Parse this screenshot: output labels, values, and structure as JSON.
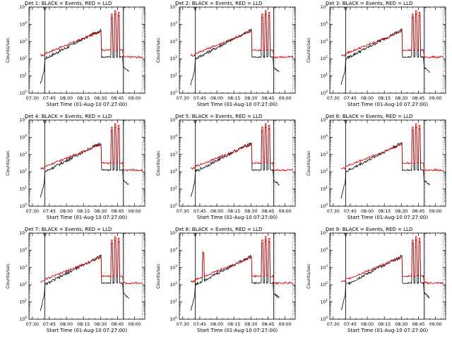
{
  "ylabel": "Counts/sec",
  "xlabel": "Start Time (01-Aug-10 07:27:00)",
  "colors": {
    "events": "#000000",
    "lld": "#d00000",
    "axis": "#000000"
  },
  "chart_data": [
    {
      "type": "line",
      "title": "Det 1: BLACK = Events, RED = LLD",
      "xtick_labels": [
        "07:30",
        "07:45",
        "08:00",
        "08:15",
        "08:30",
        "08:45",
        "09:00"
      ],
      "ytick_exponents": [
        0,
        1,
        2,
        3,
        4,
        5
      ],
      "yscale": "log",
      "ylim": [
        1,
        100000
      ],
      "y_decades_base": 10,
      "xlabel": "Start Time (01-Aug-10 07:27:00)",
      "ylabel": "Counts/sec",
      "series": [
        {
          "name": "Events",
          "color": "#000000"
        },
        {
          "name": "LLD",
          "color": "#d00000"
        }
      ]
    },
    {
      "type": "line",
      "title": "Det 2: BLACK = Events, RED = LLD",
      "xtick_labels": [
        "07:30",
        "07:45",
        "08:00",
        "08:15",
        "08:30",
        "08:45",
        "09:00"
      ],
      "ytick_exponents": [
        0,
        1,
        2,
        3,
        4,
        5
      ],
      "yscale": "log",
      "ylim": [
        1,
        100000
      ],
      "xlabel": "Start Time (01-Aug-10 07:27:00)",
      "ylabel": "Counts/sec",
      "series": [
        {
          "name": "Events",
          "color": "#000000"
        },
        {
          "name": "LLD",
          "color": "#d00000"
        }
      ]
    },
    {
      "type": "line",
      "title": "Det 3: BLACK = Events, RED = LLD",
      "xtick_labels": [
        "07:30",
        "07:45",
        "08:00",
        "08:15",
        "08:30",
        "08:45",
        "09:00"
      ],
      "ytick_exponents": [
        0,
        1,
        2,
        3,
        4,
        5
      ],
      "yscale": "log",
      "ylim": [
        1,
        100000
      ],
      "xlabel": "Start Time (01-Aug-10 07:27:00)",
      "ylabel": "Counts/sec",
      "series": [
        {
          "name": "Events",
          "color": "#000000"
        },
        {
          "name": "LLD",
          "color": "#d00000"
        }
      ]
    },
    {
      "type": "line",
      "title": "Det 4: BLACK = Events, RED = LLD",
      "xtick_labels": [
        "07:30",
        "07:45",
        "08:00",
        "08:15",
        "08:30",
        "08:45",
        "09:00"
      ],
      "ytick_exponents": [
        0,
        1,
        2,
        3,
        4,
        5
      ],
      "yscale": "log",
      "ylim": [
        1,
        100000
      ],
      "xlabel": "Start Time (01-Aug-10 07:27:00)",
      "ylabel": "Counts/sec",
      "series": [
        {
          "name": "Events",
          "color": "#000000"
        },
        {
          "name": "LLD",
          "color": "#d00000"
        }
      ]
    },
    {
      "type": "line",
      "title": "Det 5: BLACK = Events, RED = LLD",
      "xtick_labels": [
        "07:30",
        "07:45",
        "08:00",
        "08:15",
        "08:30",
        "08:45",
        "09:00"
      ],
      "ytick_exponents": [
        0,
        1,
        2,
        3,
        4,
        5
      ],
      "yscale": "log",
      "ylim": [
        1,
        100000
      ],
      "xlabel": "Start Time (01-Aug-10 07:27:00)",
      "ylabel": "Counts/sec",
      "series": [
        {
          "name": "Events",
          "color": "#000000"
        },
        {
          "name": "LLD",
          "color": "#d00000"
        }
      ]
    },
    {
      "type": "line",
      "title": "Det 6: BLACK = Events, RED = LLD",
      "xtick_labels": [
        "07:30",
        "07:45",
        "08:00",
        "08:15",
        "08:30",
        "08:45",
        "09:00"
      ],
      "ytick_exponents": [
        0,
        1,
        2,
        3,
        4,
        5
      ],
      "yscale": "log",
      "ylim": [
        1,
        100000
      ],
      "xlabel": "Start Time (01-Aug-10 07:27:00)",
      "ylabel": "Counts/sec",
      "series": [
        {
          "name": "Events",
          "color": "#000000"
        },
        {
          "name": "LLD",
          "color": "#d00000"
        }
      ]
    },
    {
      "type": "line",
      "title": "Det 7: BLACK = Events, RED = LLD",
      "xtick_labels": [
        "07:30",
        "07:45",
        "08:00",
        "08:15",
        "08:30",
        "08:45",
        "09:00"
      ],
      "ytick_exponents": [
        0,
        1,
        2,
        3,
        4,
        5
      ],
      "yscale": "log",
      "ylim": [
        1,
        100000
      ],
      "xlabel": "Start Time (01-Aug-10 07:27:00)",
      "ylabel": "Counts/sec",
      "series": [
        {
          "name": "Events",
          "color": "#000000"
        },
        {
          "name": "LLD",
          "color": "#d00000"
        }
      ]
    },
    {
      "type": "line",
      "title": "Det 8: BLACK = Events, RED = LLD",
      "xtick_labels": [
        "07:30",
        "07:45",
        "08:00",
        "08:15",
        "08:30",
        "08:45",
        "09:00"
      ],
      "ytick_exponents": [
        0,
        1,
        2,
        3,
        4,
        5
      ],
      "yscale": "log",
      "ylim": [
        1,
        100000
      ],
      "xlabel": "Start Time (01-Aug-10 07:27:00)",
      "ylabel": "Counts/sec",
      "series": [
        {
          "name": "Events",
          "color": "#000000"
        },
        {
          "name": "LLD",
          "color": "#d00000"
        }
      ]
    },
    {
      "type": "line",
      "title": "Det 9: BLACK = Events, RED = LLD",
      "xtick_labels": [
        "07:30",
        "07:45",
        "08:00",
        "08:15",
        "08:30",
        "08:45",
        "09:00"
      ],
      "ytick_exponents": [
        0,
        1,
        2,
        3,
        4,
        5
      ],
      "yscale": "log",
      "ylim": [
        1,
        100000
      ],
      "xlabel": "Start Time (01-Aug-10 07:27:00)",
      "ylabel": "Counts/sec",
      "series": [
        {
          "name": "Events",
          "color": "#000000"
        },
        {
          "name": "LLD",
          "color": "#d00000"
        }
      ]
    }
  ]
}
